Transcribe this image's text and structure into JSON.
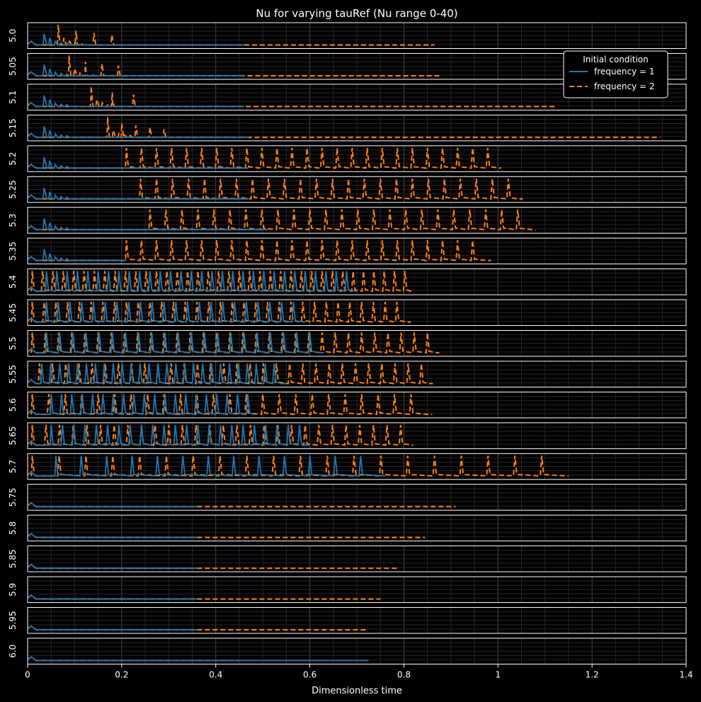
{
  "chart_data": {
    "type": "line",
    "title": "Nu for varying tauRef (Nu range 0-40)",
    "xlabel": "Dimensionless time",
    "xlim": [
      0,
      1.4
    ],
    "x_ticks": [
      0,
      0.2,
      0.4,
      0.6,
      0.8,
      1,
      1.2,
      1.4
    ],
    "x_tick_labels": [
      "0",
      "0.2",
      "0.4",
      "0.6",
      "0.8",
      "1",
      "1.2",
      "1.4"
    ],
    "ylim": [
      0,
      40
    ],
    "grid": true,
    "legend": {
      "title": "Initial condition",
      "placement": "top-right",
      "entries": [
        "frequency = 1",
        "frequency = 2"
      ]
    },
    "series_styles": [
      {
        "name": "frequency = 1",
        "color": "#1f77b4",
        "dash": "solid"
      },
      {
        "name": "frequency = 2",
        "color": "#ff7f0e",
        "dash": "dashed"
      }
    ],
    "panels": [
      {
        "tau": "5.0",
        "f1": {
          "end": 0.46,
          "first_peak": 0.035,
          "type": "decay"
        },
        "f2": {
          "end": 0.865,
          "first_peak": 0.065,
          "type": "decay",
          "period": 0.038,
          "count": 4
        }
      },
      {
        "tau": "5.05",
        "f1": {
          "end": 0.46,
          "first_peak": 0.035,
          "type": "decay"
        },
        "f2": {
          "end": 0.875,
          "first_peak": 0.088,
          "type": "decay",
          "period": 0.035,
          "count": 4
        }
      },
      {
        "tau": "5.1",
        "f1": {
          "end": 0.46,
          "first_peak": 0.035,
          "type": "decay"
        },
        "f2": {
          "end": 1.12,
          "first_peak": 0.135,
          "type": "decay",
          "period": 0.045,
          "count": 3
        }
      },
      {
        "tau": "5.15",
        "f1": {
          "end": 0.47,
          "first_peak": 0.035,
          "type": "decay"
        },
        "f2": {
          "end": 1.345,
          "first_peak": 0.17,
          "type": "decay",
          "period": 0.03,
          "count": 5
        }
      },
      {
        "tau": "5.2",
        "f1": {
          "end": 0.47,
          "first_peak": 0.035,
          "type": "decay"
        },
        "f2": {
          "end": 1.005,
          "first_peak": 0.21,
          "type": "oscillating",
          "period": 0.032
        }
      },
      {
        "tau": "5.25",
        "f1": {
          "end": 0.47,
          "first_peak": 0.035,
          "type": "decay"
        },
        "f2": {
          "end": 1.04,
          "first_peak": 0.24,
          "type": "oscillating",
          "period": 0.034
        }
      },
      {
        "tau": "5.3",
        "f1": {
          "end": 0.51,
          "first_peak": 0.035,
          "type": "decay"
        },
        "f2": {
          "end": 1.08,
          "first_peak": 0.26,
          "type": "oscillating",
          "period": 0.034
        }
      },
      {
        "tau": "5.35",
        "f1": {
          "end": 0.21,
          "first_peak": 0.035,
          "type": "decay"
        },
        "f2": {
          "end": 0.985,
          "first_peak": 0.21,
          "type": "oscillating",
          "period": 0.032
        }
      },
      {
        "tau": "5.4",
        "f1": {
          "end": 0.7,
          "first_peak": 0.04,
          "type": "oscillating",
          "period": 0.022
        },
        "f2": {
          "end": 0.815,
          "first_peak": 0.01,
          "type": "oscillating",
          "period": 0.022
        }
      },
      {
        "tau": "5.45",
        "f1": {
          "end": 0.59,
          "first_peak": 0.04,
          "type": "oscillating",
          "period": 0.025
        },
        "f2": {
          "end": 0.815,
          "first_peak": 0.01,
          "type": "oscillating",
          "period": 0.025
        }
      },
      {
        "tau": "5.5",
        "f1": {
          "end": 0.63,
          "first_peak": 0.04,
          "type": "oscillating",
          "period": 0.028
        },
        "f2": {
          "end": 0.87,
          "first_peak": 0.01,
          "type": "oscillating",
          "period": 0.028
        }
      },
      {
        "tau": "5.55",
        "f1": {
          "end": 0.55,
          "first_peak": 0.03,
          "type": "oscillating",
          "period": 0.019
        },
        "f2": {
          "end": 0.85,
          "first_peak": 0.025,
          "type": "oscillating",
          "period": 0.028
        }
      },
      {
        "tau": "5.6",
        "f1": {
          "end": 0.48,
          "first_peak": 0.05,
          "type": "oscillating",
          "period": 0.022
        },
        "f2": {
          "end": 0.86,
          "first_peak": 0.01,
          "type": "oscillating",
          "period": 0.035
        }
      },
      {
        "tau": "5.65",
        "f1": {
          "end": 0.59,
          "first_peak": 0.05,
          "type": "oscillating",
          "period": 0.024
        },
        "f2": {
          "end": 0.82,
          "first_peak": 0.01,
          "type": "oscillating",
          "period": 0.029
        }
      },
      {
        "tau": "5.7",
        "f1": {
          "end": 0.76,
          "first_peak": 0.06,
          "type": "oscillating",
          "period": 0.054
        },
        "f2": {
          "end": 1.15,
          "first_peak": 0.01,
          "type": "oscillating",
          "period": 0.057
        }
      },
      {
        "tau": "5.75",
        "f1": {
          "end": 0.36,
          "first_peak": 0.01,
          "type": "flat"
        },
        "f2": {
          "end": 0.91,
          "first_peak": 0.01,
          "type": "flat"
        }
      },
      {
        "tau": "5.8",
        "f1": {
          "end": 0.36,
          "first_peak": 0.01,
          "type": "flat"
        },
        "f2": {
          "end": 0.845,
          "first_peak": 0.01,
          "type": "flat"
        }
      },
      {
        "tau": "5.85",
        "f1": {
          "end": 0.36,
          "first_peak": 0.01,
          "type": "flat"
        },
        "f2": {
          "end": 0.785,
          "first_peak": 0.01,
          "type": "flat"
        }
      },
      {
        "tau": "5.9",
        "f1": {
          "end": 0.36,
          "first_peak": 0.01,
          "type": "flat"
        },
        "f2": {
          "end": 0.75,
          "first_peak": 0.01,
          "type": "flat"
        }
      },
      {
        "tau": "5.95",
        "f1": {
          "end": 0.36,
          "first_peak": 0.01,
          "type": "flat"
        },
        "f2": {
          "end": 0.72,
          "first_peak": 0.01,
          "type": "flat"
        }
      },
      {
        "tau": "6.0",
        "f1": {
          "end": 0.725,
          "first_peak": 0.02,
          "type": "flat"
        },
        "f2": {
          "end": 0.45,
          "first_peak": 0.01,
          "type": "flat"
        }
      }
    ]
  }
}
